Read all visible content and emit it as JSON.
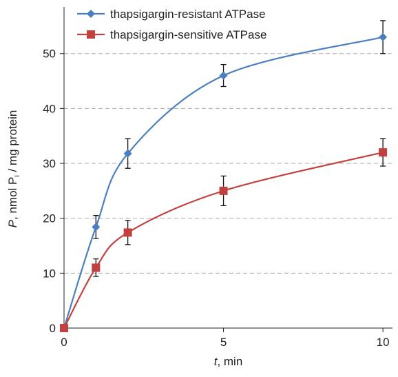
{
  "chart_data": {
    "type": "line",
    "xlabel": [
      "t",
      ", min"
    ],
    "ylabel": [
      "P",
      ", nmol P",
      "i",
      " / mg protein"
    ],
    "x": [
      0,
      1,
      2,
      5,
      10
    ],
    "xlim": [
      0,
      10.3
    ],
    "xticks": [
      0,
      5,
      10
    ],
    "ylim": [
      0,
      58
    ],
    "yticks": [
      0,
      10,
      20,
      30,
      40,
      50
    ],
    "grid": true,
    "legend": "top-left",
    "series": [
      {
        "name": "thapsigargin-resistant ATPase",
        "color": "#4a7ebf",
        "marker": "diamond",
        "values": [
          0,
          18.4,
          31.8,
          46,
          53
        ],
        "errors": [
          null,
          2.1,
          2.7,
          2,
          3
        ]
      },
      {
        "name": "thapsigargin-sensitive ATPase",
        "color": "#c0413e",
        "marker": "square",
        "values": [
          0,
          11,
          17.4,
          25,
          32
        ],
        "errors": [
          null,
          1.6,
          2.2,
          2.7,
          2.5
        ]
      }
    ]
  }
}
